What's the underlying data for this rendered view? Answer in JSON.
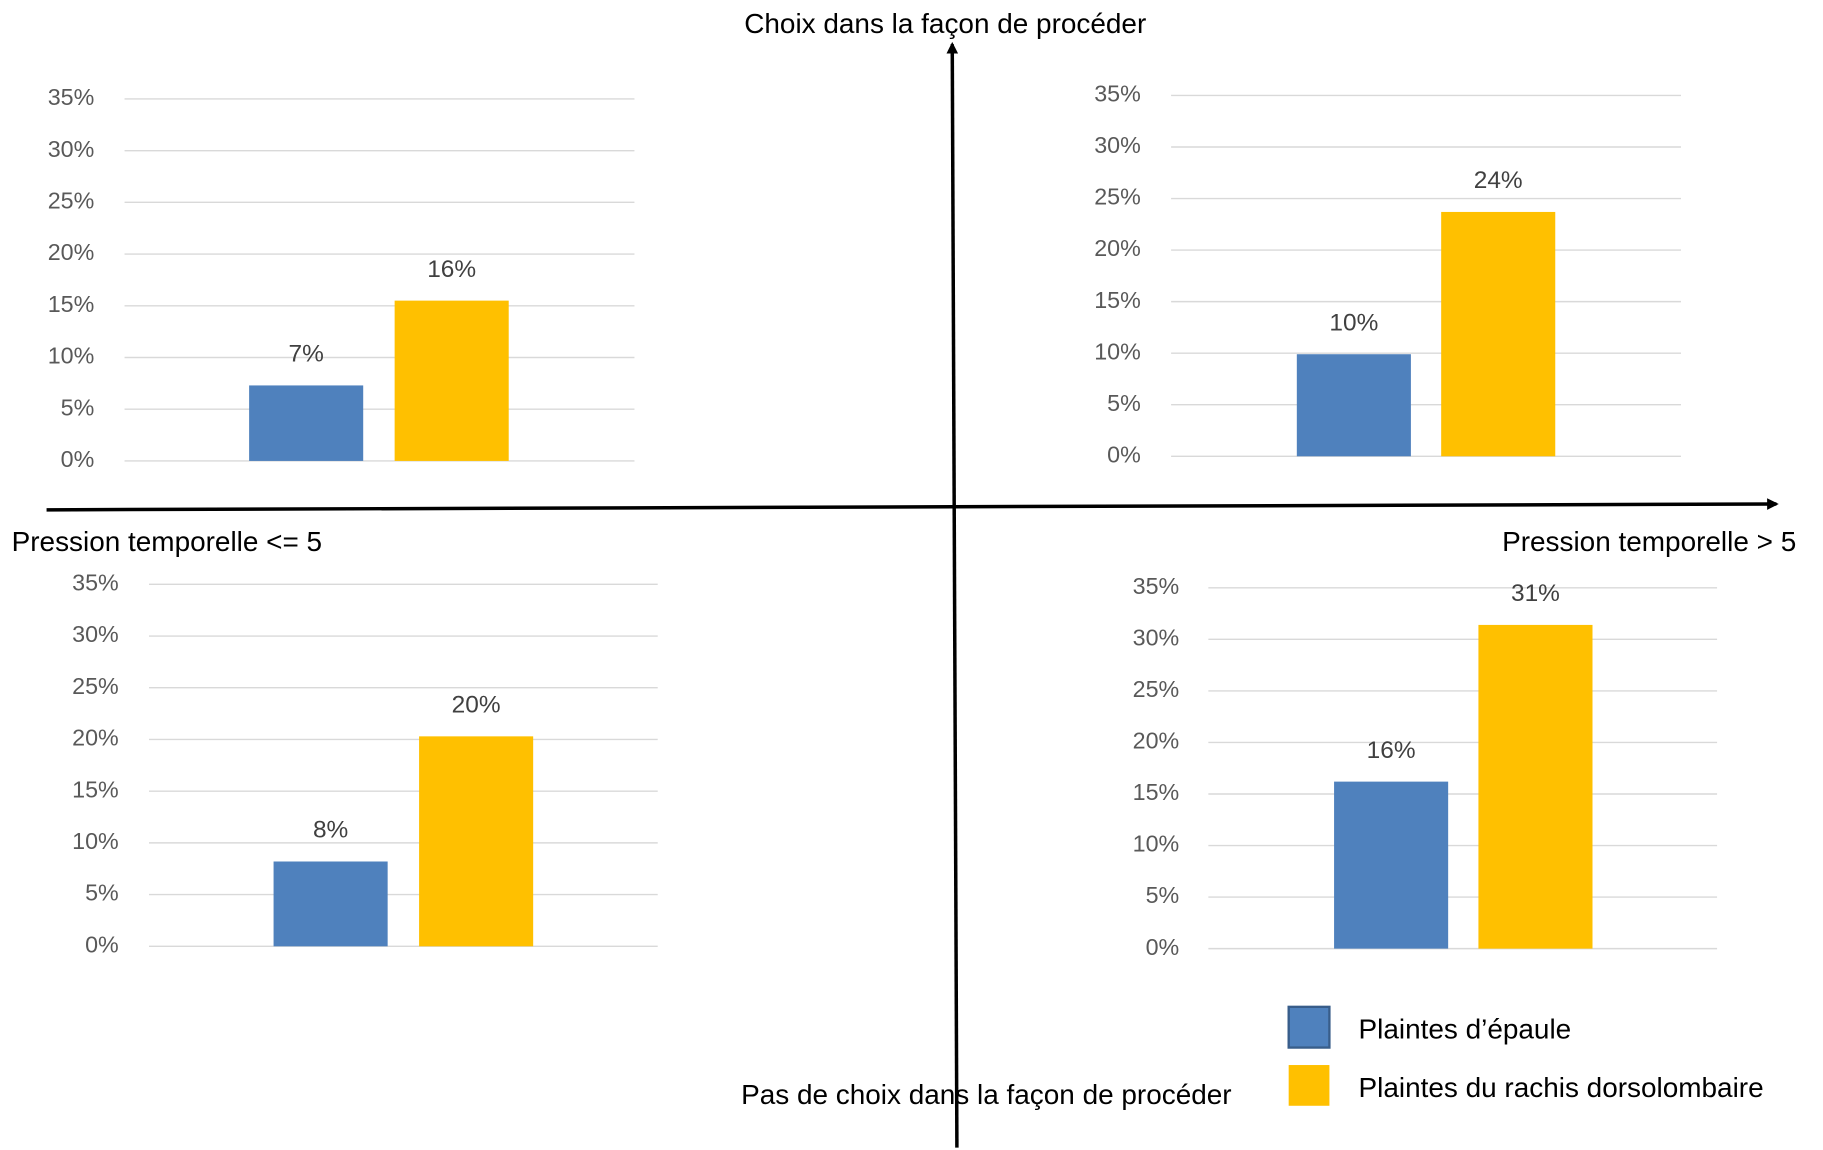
{
  "axes": {
    "top": "Choix dans la façon de procéder",
    "bottom": "Pas de choix dans la façon de procéder",
    "left": "Pression temporelle <= 5",
    "right": "Pression temporelle > 5"
  },
  "chart_data": [
    {
      "type": "bar",
      "ylim": [
        0,
        35
      ],
      "yticks": [
        {
          "value": 0,
          "label": "0%"
        },
        {
          "value": 5,
          "label": "5%"
        },
        {
          "value": 10,
          "label": "10%"
        },
        {
          "value": 15,
          "label": "15%"
        },
        {
          "value": 20,
          "label": "20%"
        },
        {
          "value": 25,
          "label": "25%"
        },
        {
          "value": 30,
          "label": "30%"
        },
        {
          "value": 35,
          "label": "35%"
        }
      ],
      "grid": true,
      "series": [
        {
          "name": "Plaintes d’épaule",
          "color": "#4f81bd",
          "values": [
            7.3
          ],
          "value_labels": [
            "7%"
          ]
        },
        {
          "name": "Plaintes du rachis dorsolombaire",
          "color": "#ffc000",
          "values": [
            15.5
          ],
          "value_labels": [
            "16%"
          ]
        }
      ]
    },
    {
      "type": "bar",
      "ylim": [
        0,
        35
      ],
      "yticks": [
        {
          "value": 0,
          "label": "0%"
        },
        {
          "value": 5,
          "label": "5%"
        },
        {
          "value": 10,
          "label": "10%"
        },
        {
          "value": 15,
          "label": "15%"
        },
        {
          "value": 20,
          "label": "20%"
        },
        {
          "value": 25,
          "label": "25%"
        },
        {
          "value": 30,
          "label": "30%"
        },
        {
          "value": 35,
          "label": "35%"
        }
      ],
      "grid": true,
      "series": [
        {
          "name": "Plaintes d’épaule",
          "color": "#4f81bd",
          "values": [
            9.9
          ],
          "value_labels": [
            "10%"
          ]
        },
        {
          "name": "Plaintes du rachis dorsolombaire",
          "color": "#ffc000",
          "values": [
            23.7
          ],
          "value_labels": [
            "24%"
          ]
        }
      ]
    },
    {
      "type": "bar",
      "ylim": [
        0,
        35
      ],
      "yticks": [
        {
          "value": 0,
          "label": "0%"
        },
        {
          "value": 5,
          "label": "5%"
        },
        {
          "value": 10,
          "label": "10%"
        },
        {
          "value": 15,
          "label": "15%"
        },
        {
          "value": 20,
          "label": "20%"
        },
        {
          "value": 25,
          "label": "25%"
        },
        {
          "value": 30,
          "label": "30%"
        },
        {
          "value": 35,
          "label": "35%"
        }
      ],
      "grid": true,
      "series": [
        {
          "name": "Plaintes d’épaule",
          "color": "#4f81bd",
          "values": [
            8.2
          ],
          "value_labels": [
            "8%"
          ]
        },
        {
          "name": "Plaintes du rachis dorsolombaire",
          "color": "#ffc000",
          "values": [
            20.3
          ],
          "value_labels": [
            "20%"
          ]
        }
      ]
    },
    {
      "type": "bar",
      "ylim": [
        0,
        35
      ],
      "yticks": [
        {
          "value": 0,
          "label": "0%"
        },
        {
          "value": 5,
          "label": "5%"
        },
        {
          "value": 10,
          "label": "10%"
        },
        {
          "value": 15,
          "label": "15%"
        },
        {
          "value": 20,
          "label": "20%"
        },
        {
          "value": 25,
          "label": "25%"
        },
        {
          "value": 30,
          "label": "30%"
        },
        {
          "value": 35,
          "label": "35%"
        }
      ],
      "grid": true,
      "series": [
        {
          "name": "Plaintes d’épaule",
          "color": "#4f81bd",
          "values": [
            16.2
          ],
          "value_labels": [
            "16%"
          ]
        },
        {
          "name": "Plaintes du rachis dorsolombaire",
          "color": "#ffc000",
          "values": [
            31.4
          ],
          "value_labels": [
            "31%"
          ]
        }
      ]
    }
  ]
}
